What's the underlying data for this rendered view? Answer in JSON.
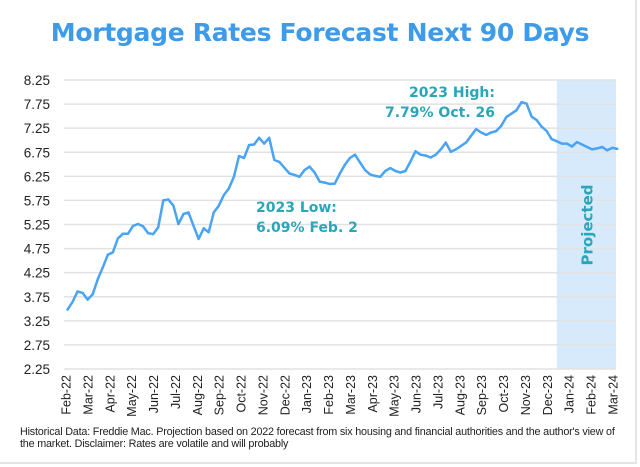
{
  "chart_data": {
    "type": "line",
    "title": "Mortgage Rates Forecast Next 90 Days",
    "xlabel": "",
    "ylabel": "",
    "ylim": [
      2.25,
      8.25
    ],
    "yticks": [
      "2.25",
      "2.75",
      "3.25",
      "3.75",
      "4.25",
      "4.75",
      "5.25",
      "5.75",
      "6.25",
      "6.75",
      "7.25",
      "7.75",
      "8.25"
    ],
    "xticks": [
      "Feb-22",
      "Mar-22",
      "Apr-22",
      "May-22",
      "Jun-22",
      "Jul-22",
      "Aug-22",
      "Sep-22",
      "Oct-22",
      "Nov-22",
      "Dec-22",
      "Jan-23",
      "Feb-23",
      "Mar-23",
      "Apr-23",
      "May-23",
      "Jun-23",
      "Jul-23",
      "Aug-23",
      "Sep-23",
      "Oct-23",
      "Nov-23",
      "Dec-23",
      "Jan-24",
      "Feb-24",
      "Mar-24"
    ],
    "xlim": [
      "2022-02-01",
      "2024-03-01"
    ],
    "grid": true,
    "line_color": "#4aa3f5",
    "annotation_color": "#2aa6b8",
    "projected_fill": "#d6eafc",
    "projected_from": "2023-12-14",
    "projected_label": "Projected",
    "annotations": [
      {
        "lines": [
          "2023 High:",
          "7.79% Oct. 26"
        ],
        "date": "2023-10-26",
        "value": 7.79
      },
      {
        "lines": [
          "2023 Low:",
          "6.09% Feb. 2"
        ],
        "date": "2023-02-02",
        "value": 6.09
      }
    ],
    "dates": [
      "2022-02-03",
      "2022-02-10",
      "2022-02-17",
      "2022-02-24",
      "2022-03-03",
      "2022-03-10",
      "2022-03-17",
      "2022-03-24",
      "2022-03-31",
      "2022-04-07",
      "2022-04-14",
      "2022-04-21",
      "2022-04-28",
      "2022-05-05",
      "2022-05-12",
      "2022-05-19",
      "2022-05-26",
      "2022-06-02",
      "2022-06-09",
      "2022-06-16",
      "2022-06-23",
      "2022-06-30",
      "2022-07-07",
      "2022-07-14",
      "2022-07-21",
      "2022-07-28",
      "2022-08-04",
      "2022-08-11",
      "2022-08-18",
      "2022-08-25",
      "2022-09-01",
      "2022-09-08",
      "2022-09-15",
      "2022-09-22",
      "2022-09-29",
      "2022-10-06",
      "2022-10-13",
      "2022-10-20",
      "2022-10-27",
      "2022-11-03",
      "2022-11-10",
      "2022-11-17",
      "2022-11-24",
      "2022-12-01",
      "2022-12-08",
      "2022-12-15",
      "2022-12-22",
      "2022-12-29",
      "2023-01-05",
      "2023-01-12",
      "2023-01-19",
      "2023-01-26",
      "2023-02-02",
      "2023-02-09",
      "2023-02-16",
      "2023-02-23",
      "2023-03-02",
      "2023-03-09",
      "2023-03-16",
      "2023-03-23",
      "2023-03-30",
      "2023-04-06",
      "2023-04-13",
      "2023-04-20",
      "2023-04-27",
      "2023-05-04",
      "2023-05-11",
      "2023-05-18",
      "2023-05-25",
      "2023-06-01",
      "2023-06-08",
      "2023-06-15",
      "2023-06-22",
      "2023-06-29",
      "2023-07-06",
      "2023-07-13",
      "2023-07-20",
      "2023-07-27",
      "2023-08-03",
      "2023-08-10",
      "2023-08-17",
      "2023-08-24",
      "2023-08-31",
      "2023-09-07",
      "2023-09-14",
      "2023-09-21",
      "2023-09-28",
      "2023-10-05",
      "2023-10-12",
      "2023-10-19",
      "2023-10-26",
      "2023-11-02",
      "2023-11-09",
      "2023-11-16",
      "2023-11-23",
      "2023-11-30",
      "2023-12-07",
      "2023-12-14",
      "2023-12-21",
      "2023-12-28",
      "2024-01-04",
      "2024-01-11",
      "2024-01-18",
      "2024-01-25",
      "2024-02-01",
      "2024-02-08",
      "2024-02-15",
      "2024-02-22",
      "2024-02-29",
      "2024-03-07"
    ],
    "values": [
      3.48,
      3.64,
      3.86,
      3.83,
      3.69,
      3.8,
      4.11,
      4.36,
      4.62,
      4.67,
      4.96,
      5.06,
      5.06,
      5.22,
      5.26,
      5.21,
      5.07,
      5.05,
      5.19,
      5.75,
      5.77,
      5.64,
      5.26,
      5.47,
      5.5,
      5.22,
      4.95,
      5.17,
      5.09,
      5.5,
      5.64,
      5.86,
      6.0,
      6.24,
      6.67,
      6.63,
      6.9,
      6.91,
      7.05,
      6.93,
      7.05,
      6.59,
      6.55,
      6.43,
      6.31,
      6.28,
      6.24,
      6.38,
      6.45,
      6.33,
      6.14,
      6.12,
      6.09,
      6.1,
      6.31,
      6.49,
      6.63,
      6.7,
      6.54,
      6.38,
      6.29,
      6.26,
      6.24,
      6.36,
      6.42,
      6.36,
      6.33,
      6.36,
      6.56,
      6.77,
      6.7,
      6.68,
      6.64,
      6.7,
      6.81,
      6.95,
      6.76,
      6.81,
      6.88,
      6.95,
      7.09,
      7.23,
      7.16,
      7.11,
      7.16,
      7.19,
      7.3,
      7.48,
      7.55,
      7.62,
      7.79,
      7.76,
      7.49,
      7.42,
      7.28,
      7.19,
      7.02,
      6.98,
      6.93,
      6.93,
      6.87,
      6.96,
      6.91,
      6.86,
      6.81,
      6.83,
      6.86,
      6.79,
      6.84,
      6.82
    ]
  },
  "footer": "Historical Data: Freddie Mac. Projection based on 2022 forecast from six housing and financial authorities and the author's view of the market. Disclaimer: Rates are volatile and will probably"
}
